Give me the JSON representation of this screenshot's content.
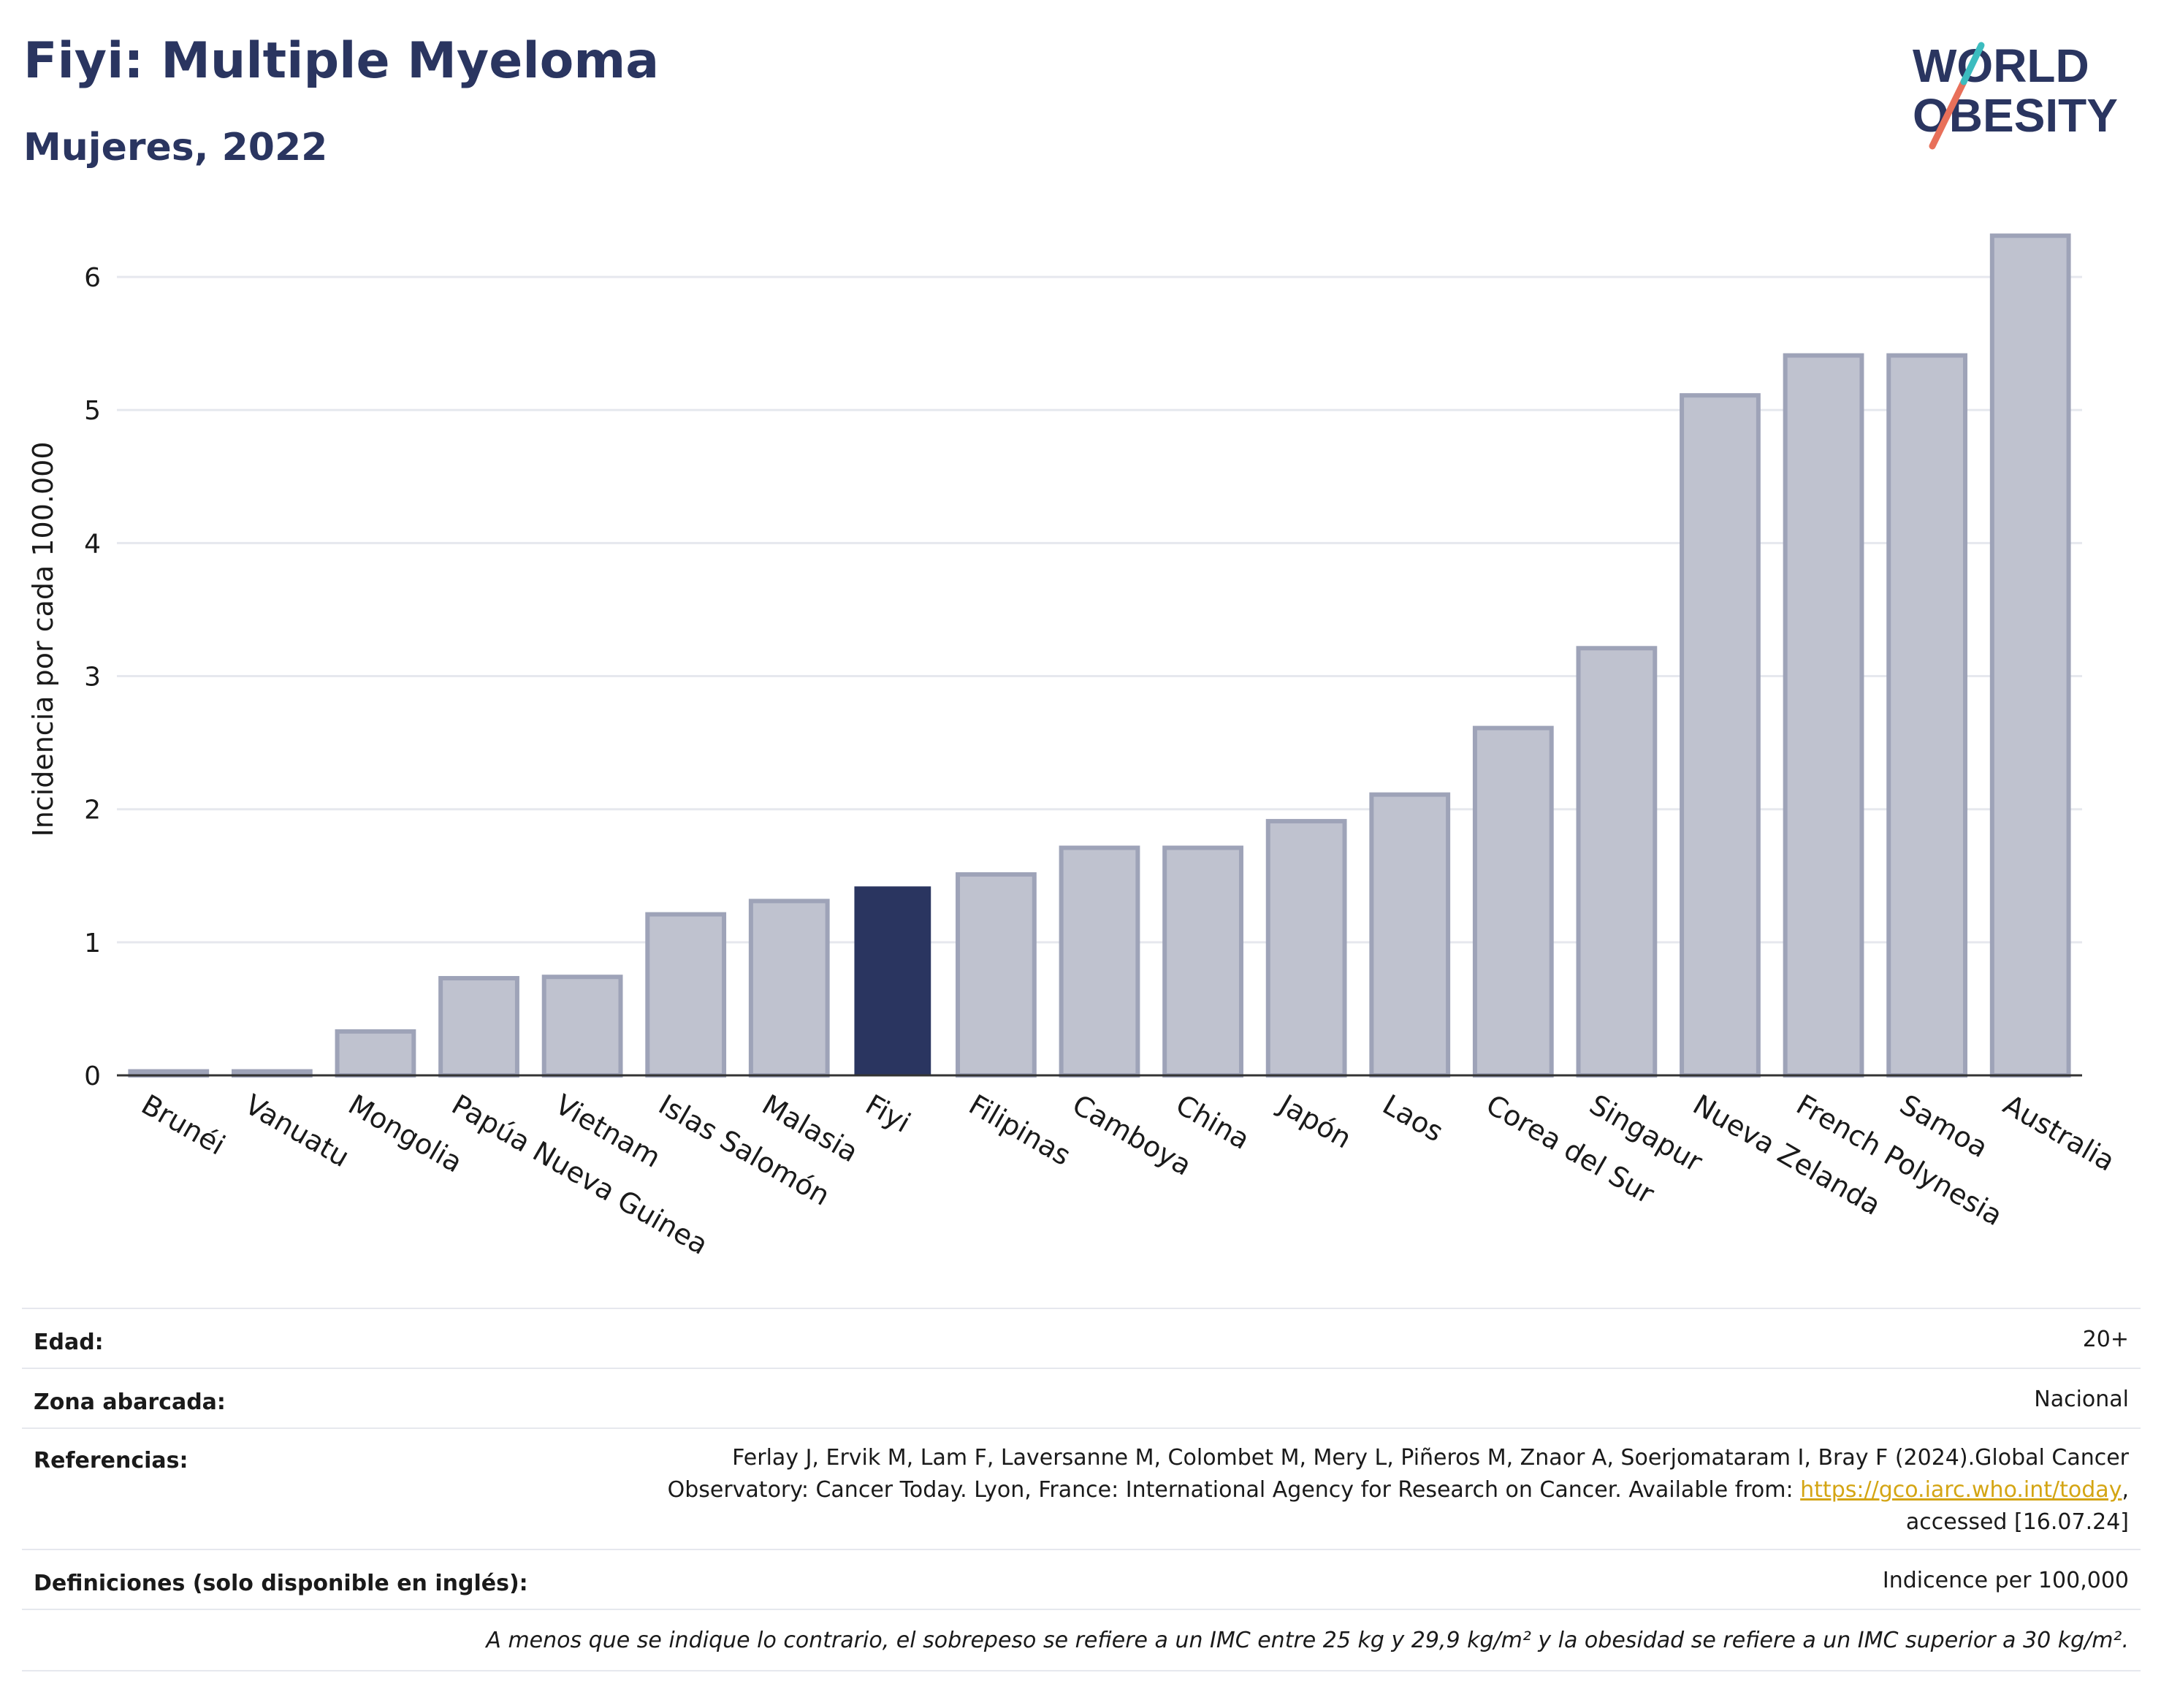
{
  "header": {
    "title": "Fiyi: Multiple Myeloma",
    "subtitle": "Mujeres, 2022",
    "logo_line1": "WORLD",
    "logo_line2": "OBESITY"
  },
  "chart_data": {
    "type": "bar",
    "ylabel": "Incidencia por cada 100.000",
    "ylim": [
      0,
      6.5
    ],
    "yticks": [
      0,
      1,
      2,
      3,
      4,
      5,
      6
    ],
    "grid": true,
    "categories": [
      "Brunéi",
      "Vanuatu",
      "Mongolia",
      "Papúa Nueva Guinea",
      "Vietnam",
      "Islas Salomón",
      "Malasia",
      "Fiyi",
      "Filipinas",
      "Camboya",
      "China",
      "Japón",
      "Laos",
      "Corea del Sur",
      "Singapur",
      "Nueva Zelanda",
      "French Polynesia",
      "Samoa",
      "Australia"
    ],
    "values": [
      0.03,
      0.03,
      0.33,
      0.73,
      0.74,
      1.21,
      1.31,
      1.42,
      1.51,
      1.71,
      1.71,
      1.91,
      2.11,
      2.61,
      3.21,
      5.11,
      5.41,
      5.41,
      6.31
    ],
    "highlight": "Fiyi",
    "colors": {
      "bar": "#bfc2cf",
      "bar_edge": "#9ea3b8",
      "highlight": "#2a3560"
    }
  },
  "meta": {
    "age_label": "Edad:",
    "age_value": "20+",
    "area_label": "Zona abarcada:",
    "area_value": "Nacional",
    "refs_label": "Referencias:",
    "refs_line1": "Ferlay J, Ervik M, Lam F, Laversanne M, Colombet M, Mery L, Piñeros M, Znaor A, Soerjomataram I, Bray F (2024).Global Cancer",
    "refs_line2_pre": "Observatory: Cancer Today. Lyon, France: International Agency for Research on Cancer. Available from: ",
    "refs_link": "https://gco.iarc.who.int/today",
    "refs_line2_post": ",",
    "refs_line3": "accessed [16.07.24]",
    "defs_label": "Definiciones (solo disponible en inglés):",
    "defs_value": "Indicence per 100,000",
    "note": "A menos que se indique lo contrario, el sobrepeso se refiere a un IMC entre 25 kg y 29,9 kg/m² y la obesidad se refiere a un IMC superior a 30 kg/m²."
  }
}
